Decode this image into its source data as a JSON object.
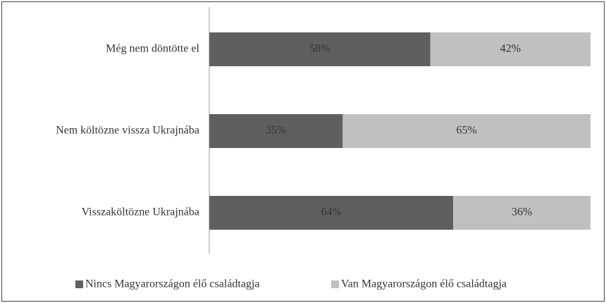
{
  "chart_data": {
    "type": "stacked-bar-horizontal",
    "categories": [
      "Még nem döntötte el",
      "Nem költözne vissza Ukrajnába",
      "Visszaköltözne Ukrajnába"
    ],
    "series": [
      {
        "name": "Nincs Magyarországon élő családtagja",
        "color": "#5f5f5f",
        "values": [
          58,
          35,
          64
        ],
        "value_labels": [
          "58%",
          "35%",
          "64%"
        ]
      },
      {
        "name": "Van Magyarországon élő családtagja",
        "color": "#c0c0c0",
        "values": [
          42,
          65,
          36
        ],
        "value_labels": [
          "42%",
          "65%",
          "36%"
        ]
      }
    ],
    "xlim": [
      0,
      100
    ],
    "legend": "bottom"
  }
}
